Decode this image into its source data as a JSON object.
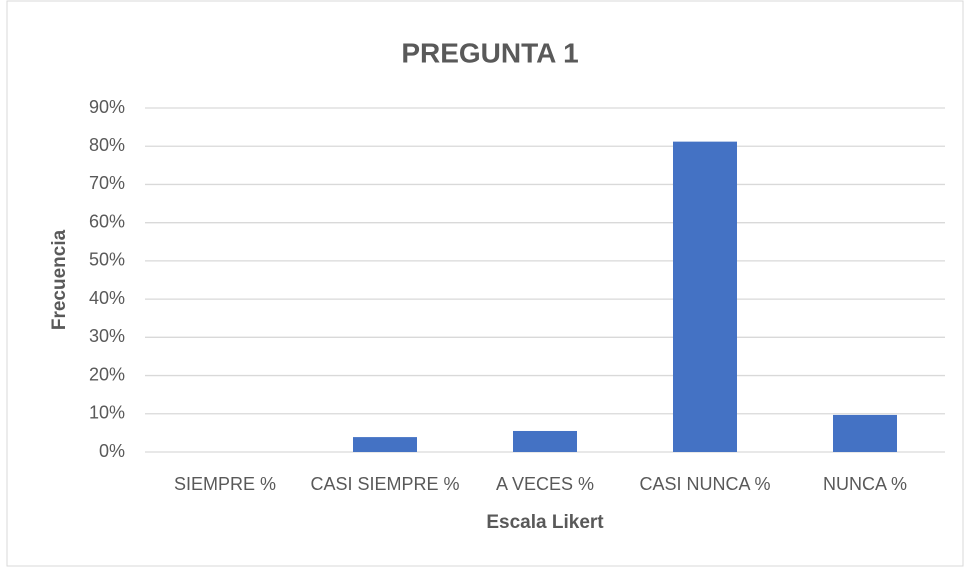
{
  "chart_data": {
    "type": "bar",
    "title": "PREGUNTA 1",
    "x_label": "Escala Likert",
    "y_label": "Frecuencia",
    "categories": [
      "SIEMPRE %",
      "CASI SIEMPRE %",
      "A VECES %",
      "CASI NUNCA %",
      "NUNCA %"
    ],
    "values": [
      0,
      3.9,
      5.5,
      81.2,
      9.7
    ],
    "color": "#4472c4",
    "ylim": [
      0,
      90
    ],
    "yticks": [
      {
        "value": 0,
        "label": "0%"
      },
      {
        "value": 10,
        "label": "10%"
      },
      {
        "value": 20,
        "label": "20%"
      },
      {
        "value": 30,
        "label": "30%"
      },
      {
        "value": 40,
        "label": "40%"
      },
      {
        "value": 50,
        "label": "50%"
      },
      {
        "value": 60,
        "label": "60%"
      },
      {
        "value": 70,
        "label": "70%"
      },
      {
        "value": 80,
        "label": "80%"
      },
      {
        "value": 90,
        "label": "90%"
      }
    ],
    "grid": true
  }
}
